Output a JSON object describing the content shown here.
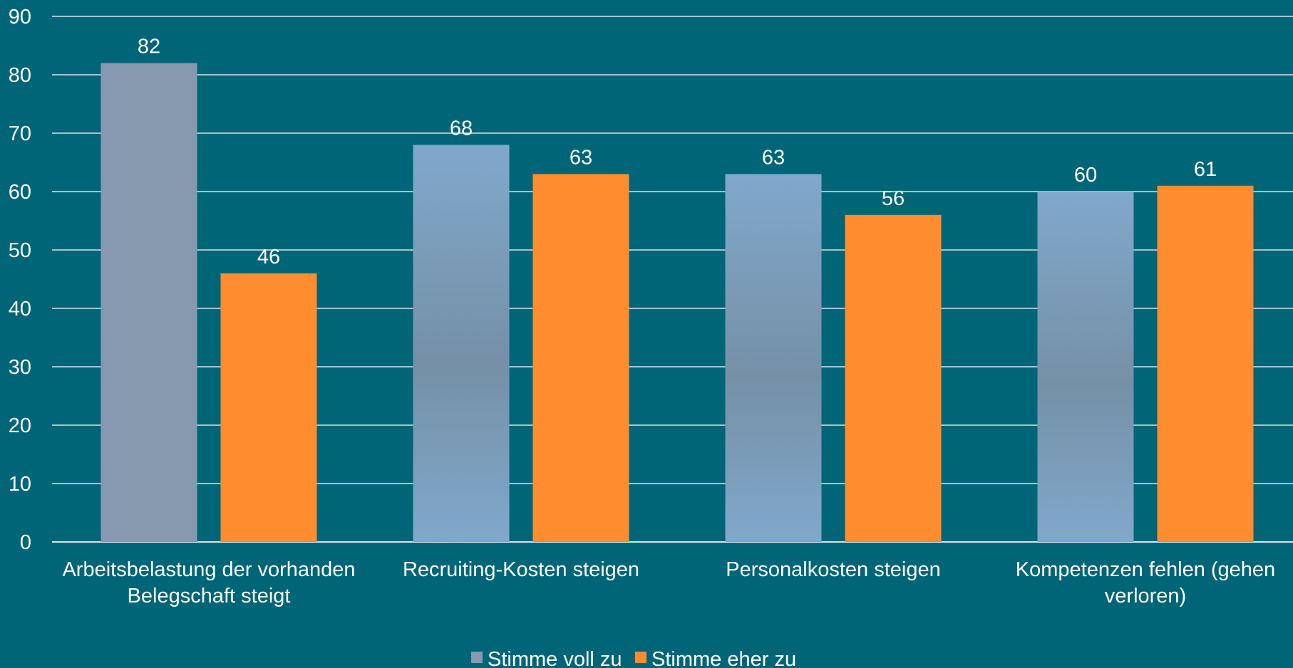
{
  "colors": {
    "background": "#006577",
    "grid": "#d8e4e8",
    "series_1_top": "#80a8cc",
    "series_1_mid": "#7590a6",
    "series_1_plain": "#8799ae",
    "series_2": "#ff8c2e",
    "text": "#ffffff"
  },
  "legend": {
    "items": [
      {
        "label": "Stimme voll zu"
      },
      {
        "label": "Stimme eher zu"
      }
    ]
  },
  "chart_data": {
    "type": "bar",
    "title": "",
    "xlabel": "",
    "ylabel": "",
    "ylim": [
      0,
      90
    ],
    "yticks": [
      0,
      10,
      20,
      30,
      40,
      50,
      60,
      70,
      80,
      90
    ],
    "grid": true,
    "legend_position": "bottom-center",
    "categories": [
      [
        "Arbeitsbelastung der vorhanden",
        "Belegschaft steigt"
      ],
      [
        "Recruiting-Kosten steigen"
      ],
      [
        "Personalkosten steigen"
      ],
      [
        "Kompetenzen fehlen (gehen",
        "verloren)"
      ]
    ],
    "series": [
      {
        "name": "Stimme voll zu",
        "values": [
          82,
          68,
          63,
          60
        ]
      },
      {
        "name": "Stimme eher zu",
        "values": [
          46,
          63,
          56,
          61
        ]
      }
    ]
  }
}
